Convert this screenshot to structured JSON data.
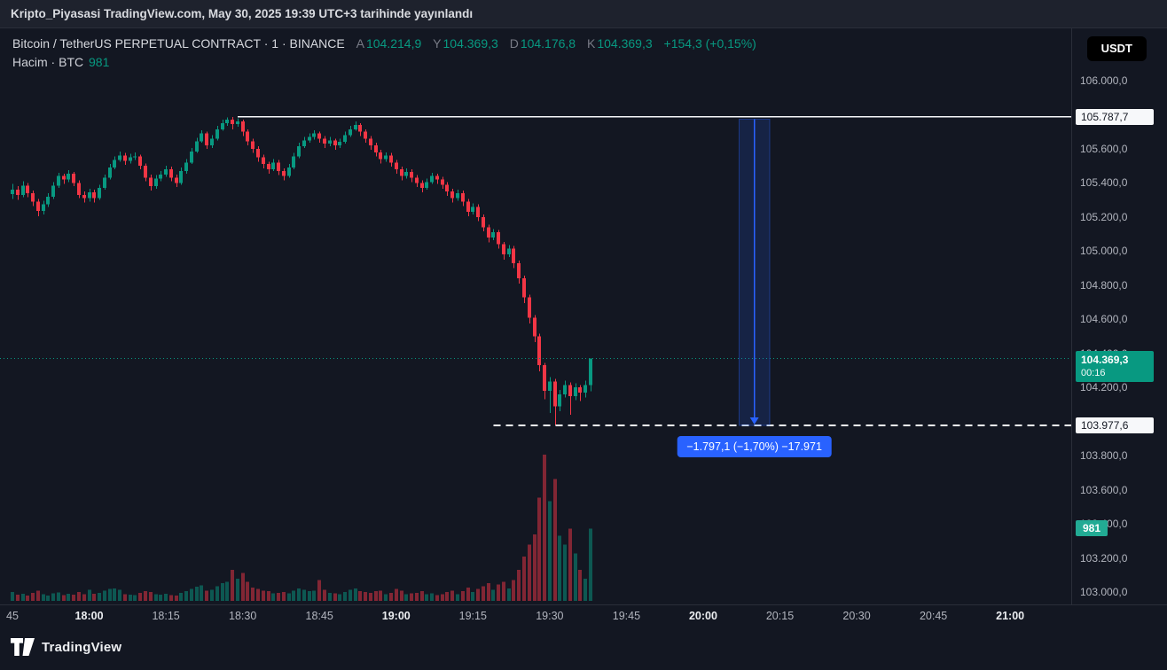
{
  "published_bar": {
    "text": "Kripto_Piyasasi TradingView.com, May 30, 2025 19:39 UTC+3 tarihinde yayınlandı"
  },
  "toolbar": {
    "currency_button": "USDT"
  },
  "legend": {
    "symbol": "Bitcoin / TetherUS PERPETUAL CONTRACT · 1 · BINANCE",
    "ohlc": [
      {
        "label": "A",
        "value": "104.214,9"
      },
      {
        "label": "Y",
        "value": "104.369,3"
      },
      {
        "label": "D",
        "value": "104.176,8"
      },
      {
        "label": "K",
        "value": "104.369,3"
      }
    ],
    "change": "+154,3 (+0,15%)",
    "volume_row": {
      "label": "Hacim · BTC",
      "value": "981"
    }
  },
  "price_axis": {
    "labels": [
      {
        "text": "106.000,0",
        "price": 106000
      },
      {
        "text": "105.800,0",
        "price": 105800
      },
      {
        "text": "105.600,0",
        "price": 105600
      },
      {
        "text": "105.400,0",
        "price": 105400
      },
      {
        "text": "105.200,0",
        "price": 105200
      },
      {
        "text": "105.000,0",
        "price": 105000
      },
      {
        "text": "104.800,0",
        "price": 104800
      },
      {
        "text": "104.600,0",
        "price": 104600
      },
      {
        "text": "104.400,0",
        "price": 104400
      },
      {
        "text": "104.200,0",
        "price": 104200
      },
      {
        "text": "104.000,0",
        "price": 104000
      },
      {
        "text": "103.800,0",
        "price": 103800
      },
      {
        "text": "103.600,0",
        "price": 103600
      },
      {
        "text": "103.400,0",
        "price": 103400
      },
      {
        "text": "103.200,0",
        "price": 103200
      },
      {
        "text": "103.000,0",
        "price": 103000
      }
    ],
    "high_box": {
      "text": "105.787,7",
      "price": 105787.7
    },
    "last_box": {
      "text": "104.369,3",
      "countdown": "00:16",
      "price": 104369.3
    },
    "low_box": {
      "text": "103.977,6",
      "price": 103977.6
    },
    "volume_box": {
      "text": "981",
      "value": 981
    }
  },
  "time_axis": {
    "labels": [
      {
        "text": "45",
        "time": "17:45",
        "major": false
      },
      {
        "text": "18:00",
        "time": "18:00",
        "major": true
      },
      {
        "text": "18:15",
        "time": "18:15",
        "major": false
      },
      {
        "text": "18:30",
        "time": "18:30",
        "major": false
      },
      {
        "text": "18:45",
        "time": "18:45",
        "major": false
      },
      {
        "text": "19:00",
        "time": "19:00",
        "major": true
      },
      {
        "text": "19:15",
        "time": "19:15",
        "major": false
      },
      {
        "text": "19:30",
        "time": "19:30",
        "major": false
      },
      {
        "text": "19:45",
        "time": "19:45",
        "major": false
      },
      {
        "text": "20:00",
        "time": "20:00",
        "major": true
      },
      {
        "text": "20:15",
        "time": "20:15",
        "major": false
      },
      {
        "text": "20:30",
        "time": "20:30",
        "major": false
      },
      {
        "text": "20:45",
        "time": "20:45",
        "major": false
      },
      {
        "text": "21:00",
        "time": "21:00",
        "major": true
      }
    ]
  },
  "levels": {
    "high_line": {
      "price": 105787.7,
      "style": "solid",
      "start_time": "18:29"
    },
    "last_line": {
      "price": 104369.3,
      "style": "dotted"
    },
    "low_line": {
      "price": 103977.6,
      "style": "dashed",
      "start_time": "19:19"
    }
  },
  "measure_tool": {
    "label": "−1.797,1 (−1,70%) −17.971",
    "time_from": "20:07",
    "time_to": "20:13",
    "price_from": 105774.7,
    "price_to": 103977.6
  },
  "footer": {
    "brand": "TradingView"
  },
  "colors": {
    "up": "#089981",
    "down": "#f23645",
    "accent_blue": "#2962ff",
    "axis_text": "#b2b5be",
    "background": "#131722",
    "panel": "#1e222d",
    "white_line": "#f6f7f9"
  },
  "chart_data": {
    "type": "candlestick",
    "title": "Bitcoin / TetherUS PERPETUAL CONTRACT · 1 · BINANCE",
    "interval": "1m",
    "quote_currency": "USDT",
    "volume_unit": "BTC",
    "price_range_visible": [
      103000,
      106000
    ],
    "session_high": 105787.7,
    "session_low": 103977.6,
    "last_price": 104369.3,
    "columns": [
      "time",
      "open",
      "high",
      "low",
      "close",
      "volume"
    ],
    "series": [
      [
        "17:45",
        105335,
        105395,
        105305,
        105360,
        120
      ],
      [
        "17:46",
        105360,
        105380,
        105300,
        105330,
        85
      ],
      [
        "17:47",
        105330,
        105410,
        105315,
        105385,
        95
      ],
      [
        "17:48",
        105385,
        105400,
        105315,
        105340,
        70
      ],
      [
        "17:49",
        105340,
        105355,
        105265,
        105290,
        110
      ],
      [
        "17:50",
        105290,
        105305,
        105205,
        105235,
        140
      ],
      [
        "17:51",
        105235,
        105295,
        105215,
        105275,
        90
      ],
      [
        "17:52",
        105275,
        105340,
        105260,
        105320,
        75
      ],
      [
        "17:53",
        105320,
        105405,
        105305,
        105385,
        100
      ],
      [
        "17:54",
        105385,
        105460,
        105370,
        105440,
        115
      ],
      [
        "17:55",
        105440,
        105455,
        105395,
        105420,
        80
      ],
      [
        "17:56",
        105420,
        105475,
        105405,
        105455,
        95
      ],
      [
        "17:57",
        105455,
        105465,
        105380,
        105400,
        85
      ],
      [
        "17:58",
        105400,
        105415,
        105310,
        105330,
        120
      ],
      [
        "17:59",
        105330,
        105350,
        105285,
        105310,
        90
      ],
      [
        "18:00",
        105310,
        105365,
        105290,
        105345,
        150
      ],
      [
        "18:01",
        105345,
        105360,
        105285,
        105310,
        95
      ],
      [
        "18:02",
        105310,
        105390,
        105300,
        105370,
        110
      ],
      [
        "18:03",
        105370,
        105450,
        105360,
        105430,
        140
      ],
      [
        "18:04",
        105430,
        105510,
        105420,
        105490,
        160
      ],
      [
        "18:05",
        105490,
        105555,
        105480,
        105535,
        170
      ],
      [
        "18:06",
        105535,
        105585,
        105525,
        105560,
        150
      ],
      [
        "18:07",
        105560,
        105575,
        105505,
        105530,
        90
      ],
      [
        "18:08",
        105530,
        105570,
        105515,
        105550,
        85
      ],
      [
        "18:09",
        105550,
        105580,
        105535,
        105555,
        80
      ],
      [
        "18:10",
        105555,
        105565,
        105480,
        105500,
        110
      ],
      [
        "18:11",
        105500,
        105515,
        105410,
        105430,
        130
      ],
      [
        "18:12",
        105430,
        105450,
        105355,
        105380,
        120
      ],
      [
        "18:13",
        105380,
        105445,
        105365,
        105425,
        90
      ],
      [
        "18:14",
        105425,
        105470,
        105410,
        105450,
        85
      ],
      [
        "18:15",
        105450,
        105500,
        105435,
        105480,
        95
      ],
      [
        "18:16",
        105480,
        105495,
        105410,
        105430,
        80
      ],
      [
        "18:17",
        105430,
        105450,
        105375,
        105400,
        75
      ],
      [
        "18:18",
        105400,
        105490,
        105390,
        105470,
        110
      ],
      [
        "18:19",
        105470,
        105540,
        105455,
        105520,
        130
      ],
      [
        "18:20",
        105520,
        105605,
        105510,
        105585,
        160
      ],
      [
        "18:21",
        105585,
        105665,
        105575,
        105645,
        190
      ],
      [
        "18:22",
        105645,
        105710,
        105635,
        105690,
        210
      ],
      [
        "18:23",
        105690,
        105700,
        105600,
        105620,
        140
      ],
      [
        "18:24",
        105620,
        105680,
        105605,
        105660,
        150
      ],
      [
        "18:25",
        105660,
        105735,
        105650,
        105715,
        200
      ],
      [
        "18:26",
        105715,
        105770,
        105705,
        105750,
        240
      ],
      [
        "18:27",
        105750,
        105785,
        105735,
        105770,
        260
      ],
      [
        "18:28",
        105770,
        105787.7,
        105715,
        105745,
        420
      ],
      [
        "18:29",
        105745,
        105780,
        105730,
        105760,
        300
      ],
      [
        "18:30",
        105760,
        105770,
        105675,
        105700,
        380
      ],
      [
        "18:31",
        105700,
        105715,
        105620,
        105645,
        260
      ],
      [
        "18:32",
        105645,
        105660,
        105575,
        105600,
        180
      ],
      [
        "18:33",
        105600,
        105615,
        105525,
        105550,
        160
      ],
      [
        "18:34",
        105550,
        105565,
        105485,
        105510,
        140
      ],
      [
        "18:35",
        105510,
        105525,
        105455,
        105480,
        130
      ],
      [
        "18:36",
        105480,
        105540,
        105470,
        105520,
        100
      ],
      [
        "18:37",
        105520,
        105535,
        105445,
        105470,
        110
      ],
      [
        "18:38",
        105470,
        105485,
        105415,
        105440,
        120
      ],
      [
        "18:39",
        105440,
        105510,
        105430,
        105490,
        100
      ],
      [
        "18:40",
        105490,
        105575,
        105480,
        105555,
        140
      ],
      [
        "18:41",
        105555,
        105635,
        105545,
        105615,
        170
      ],
      [
        "18:42",
        105615,
        105670,
        105605,
        105650,
        150
      ],
      [
        "18:43",
        105650,
        105690,
        105635,
        105670,
        130
      ],
      [
        "18:44",
        105670,
        105710,
        105655,
        105690,
        140
      ],
      [
        "18:45",
        105690,
        105700,
        105635,
        105660,
        280
      ],
      [
        "18:46",
        105660,
        105675,
        105605,
        105630,
        150
      ],
      [
        "18:47",
        105630,
        105670,
        105615,
        105650,
        110
      ],
      [
        "18:48",
        105650,
        105660,
        105595,
        105620,
        100
      ],
      [
        "18:49",
        105620,
        105660,
        105605,
        105640,
        90
      ],
      [
        "18:50",
        105640,
        105700,
        105630,
        105680,
        120
      ],
      [
        "18:51",
        105680,
        105735,
        105670,
        105715,
        150
      ],
      [
        "18:52",
        105715,
        105760,
        105705,
        105740,
        170
      ],
      [
        "18:53",
        105740,
        105750,
        105675,
        105700,
        130
      ],
      [
        "18:54",
        105700,
        105715,
        105635,
        105660,
        120
      ],
      [
        "18:55",
        105660,
        105675,
        105595,
        105620,
        110
      ],
      [
        "18:56",
        105620,
        105635,
        105555,
        105580,
        130
      ],
      [
        "18:57",
        105580,
        105595,
        105515,
        105540,
        140
      ],
      [
        "18:58",
        105540,
        105580,
        105525,
        105560,
        90
      ],
      [
        "18:59",
        105560,
        105575,
        105495,
        105520,
        110
      ],
      [
        "19:00",
        105520,
        105535,
        105455,
        105480,
        160
      ],
      [
        "19:01",
        105480,
        105495,
        105415,
        105440,
        140
      ],
      [
        "19:02",
        105440,
        105485,
        105425,
        105465,
        90
      ],
      [
        "19:03",
        105465,
        105480,
        105405,
        105430,
        100
      ],
      [
        "19:04",
        105430,
        105445,
        105375,
        105400,
        110
      ],
      [
        "19:05",
        105400,
        105415,
        105345,
        105370,
        130
      ],
      [
        "19:06",
        105370,
        105425,
        105360,
        105405,
        90
      ],
      [
        "19:07",
        105405,
        105460,
        105395,
        105440,
        100
      ],
      [
        "19:08",
        105440,
        105455,
        105395,
        105420,
        80
      ],
      [
        "19:09",
        105420,
        105435,
        105365,
        105390,
        90
      ],
      [
        "19:10",
        105390,
        105405,
        105325,
        105350,
        120
      ],
      [
        "19:11",
        105350,
        105365,
        105285,
        105310,
        140
      ],
      [
        "19:12",
        105310,
        105360,
        105295,
        105340,
        90
      ],
      [
        "19:13",
        105340,
        105355,
        105265,
        105290,
        130
      ],
      [
        "19:14",
        105290,
        105305,
        105205,
        105230,
        180
      ],
      [
        "19:15",
        105230,
        105280,
        105215,
        105260,
        120
      ],
      [
        "19:16",
        105260,
        105275,
        105175,
        105200,
        160
      ],
      [
        "19:17",
        105200,
        105215,
        105115,
        105140,
        200
      ],
      [
        "19:18",
        105140,
        105155,
        105050,
        105080,
        240
      ],
      [
        "19:19",
        105080,
        105130,
        105065,
        105110,
        150
      ],
      [
        "19:20",
        105110,
        105125,
        105015,
        105040,
        220
      ],
      [
        "19:21",
        105040,
        105055,
        104950,
        104980,
        260
      ],
      [
        "19:22",
        104980,
        105035,
        104965,
        105015,
        170
      ],
      [
        "19:23",
        105015,
        105030,
        104900,
        104930,
        280
      ],
      [
        "19:24",
        104930,
        104945,
        104810,
        104840,
        420
      ],
      [
        "19:25",
        104840,
        104855,
        104695,
        104730,
        600
      ],
      [
        "19:26",
        104730,
        104745,
        104575,
        104610,
        760
      ],
      [
        "19:27",
        104610,
        104625,
        104465,
        104500,
        900
      ],
      [
        "19:28",
        104500,
        104515,
        104295,
        104330,
        1400
      ],
      [
        "19:29",
        104330,
        104345,
        104130,
        104180,
        1980
      ],
      [
        "19:30",
        104180,
        104260,
        104050,
        104235,
        1350
      ],
      [
        "19:31",
        104235,
        104250,
        103977.6,
        104090,
        1650
      ],
      [
        "19:32",
        104090,
        104185,
        104060,
        104160,
        880
      ],
      [
        "19:33",
        104160,
        104240,
        104140,
        104215,
        760
      ],
      [
        "19:34",
        104215,
        104230,
        104040,
        104150,
        980
      ],
      [
        "19:35",
        104150,
        104225,
        104125,
        104200,
        640
      ],
      [
        "19:36",
        104200,
        104215,
        104120,
        104170,
        420
      ],
      [
        "19:37",
        104170,
        104240,
        104140,
        104214.9,
        300
      ],
      [
        "19:38",
        104214.9,
        104369.3,
        104176.8,
        104369.3,
        981
      ]
    ]
  }
}
